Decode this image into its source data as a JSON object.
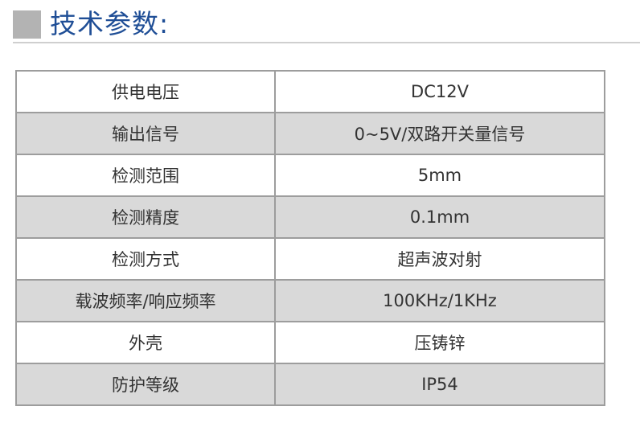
{
  "title": "技术参数:",
  "colors": {
    "title": "#1f4e96",
    "alt_row": "#d9d9d9",
    "square": "#b3b3b3"
  },
  "rows": [
    {
      "label": "供电电压",
      "value": "DC12V"
    },
    {
      "label": "输出信号",
      "value": "0~5V/双路开关量信号"
    },
    {
      "label": "检测范围",
      "value": "5mm"
    },
    {
      "label": "检测精度",
      "value": "0.1mm"
    },
    {
      "label": "检测方式",
      "value": "超声波对射"
    },
    {
      "label": "载波频率/响应频率",
      "value": "100KHz/1KHz"
    },
    {
      "label": "外壳",
      "value": "压铸锌"
    },
    {
      "label": "防护等级",
      "value": "IP54"
    }
  ]
}
